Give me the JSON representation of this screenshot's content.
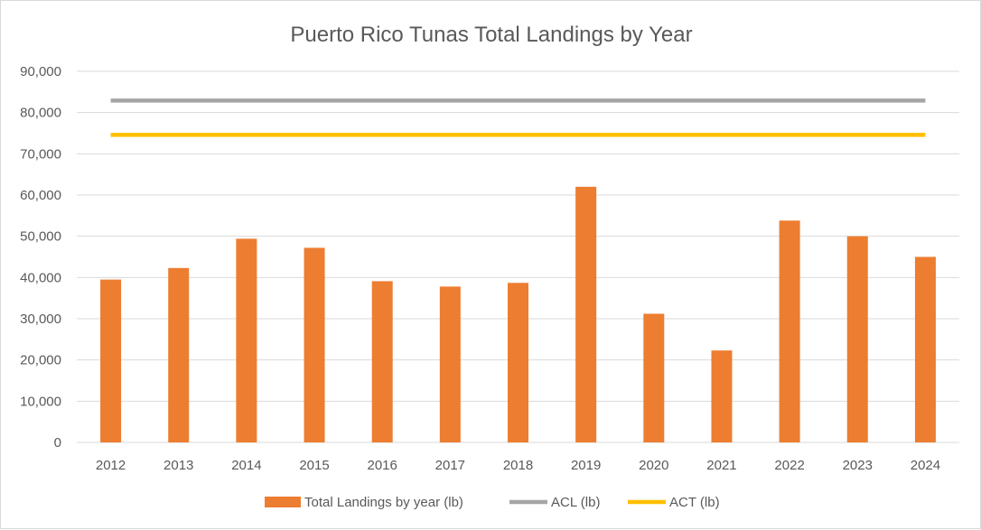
{
  "chart_data": {
    "type": "bar",
    "title": "Puerto Rico Tunas Total Landings by Year",
    "xlabel": "",
    "ylabel": "",
    "ylim": [
      0,
      90000
    ],
    "y_ticks": [
      "0",
      "10,000",
      "20,000",
      "30,000",
      "40,000",
      "50,000",
      "60,000",
      "70,000",
      "80,000",
      "90,000"
    ],
    "y_tick_values": [
      0,
      10000,
      20000,
      30000,
      40000,
      50000,
      60000,
      70000,
      80000,
      90000
    ],
    "categories": [
      "2012",
      "2013",
      "2014",
      "2015",
      "2016",
      "2017",
      "2018",
      "2019",
      "2020",
      "2021",
      "2022",
      "2023",
      "2024"
    ],
    "series": [
      {
        "name": "Total Landings by year (lb)",
        "kind": "bar",
        "color": "#ED7D31",
        "values": [
          39500,
          42300,
          49400,
          47200,
          39100,
          37800,
          38700,
          62000,
          31200,
          22300,
          53800,
          50000,
          45000
        ]
      },
      {
        "name": "ACL (lb)",
        "kind": "line",
        "color": "#A5A5A5",
        "values": [
          82900,
          82900,
          82900,
          82900,
          82900,
          82900,
          82900,
          82900,
          82900,
          82900,
          82900,
          82900,
          82900
        ]
      },
      {
        "name": "ACT (lb)",
        "kind": "line",
        "color": "#FFC000",
        "values": [
          74600,
          74600,
          74600,
          74600,
          74600,
          74600,
          74600,
          74600,
          74600,
          74600,
          74600,
          74600,
          74600
        ]
      }
    ],
    "grid": true,
    "legend_position": "bottom"
  }
}
